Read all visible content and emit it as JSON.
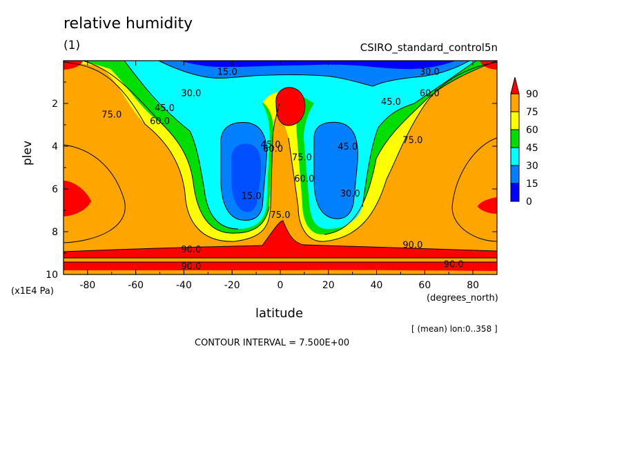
{
  "chart_data": {
    "type": "heatmap",
    "title": "relative humidity",
    "subtitle": "(1)",
    "source_label": "CSIRO_standard_control5n",
    "xlabel": "latitude",
    "xunits": "(degrees_north)",
    "ylabel": "plev",
    "yunits": "(x1E4 Pa)",
    "average_note": "[ (mean) lon:0..358 ]",
    "contour_interval_label": "CONTOUR INTERVAL = 7.500E+00",
    "xlim": [
      -90,
      90
    ],
    "ylim": [
      10,
      0
    ],
    "y_reversed": true,
    "x_ticks": [
      -80,
      -60,
      -40,
      -20,
      0,
      20,
      40,
      60,
      80
    ],
    "y_ticks": [
      2,
      4,
      6,
      8,
      10
    ],
    "legend": {
      "placement": "right",
      "levels": [
        "90",
        "75",
        "60",
        "45",
        "30",
        "15",
        "0"
      ],
      "colors": [
        "#ff0000",
        "#ffa500",
        "#ffff00",
        "#00dd00",
        "#00ffff",
        "#0080ff",
        "#0000ff"
      ]
    },
    "contour_labels": [
      {
        "text": "15.0",
        "lat": -22,
        "plev": 0.5
      },
      {
        "text": "30.0",
        "lat": 62,
        "plev": 0.5
      },
      {
        "text": "30.0",
        "lat": -37,
        "plev": 1.5
      },
      {
        "text": "45.0",
        "lat": -48,
        "plev": 2.2
      },
      {
        "text": "60.0",
        "lat": -50,
        "plev": 2.8
      },
      {
        "text": "75.0",
        "lat": -70,
        "plev": 2.5
      },
      {
        "text": "45.0",
        "lat": 46,
        "plev": 1.9
      },
      {
        "text": "60.0",
        "lat": 62,
        "plev": 1.5
      },
      {
        "text": "75.0",
        "lat": 55,
        "plev": 3.7
      },
      {
        "text": "45.0",
        "lat": 28,
        "plev": 4.0
      },
      {
        "text": "30.0",
        "lat": 29,
        "plev": 6.2
      },
      {
        "text": "15.0",
        "lat": -12,
        "plev": 6.3
      },
      {
        "text": "75.0",
        "lat": 9,
        "plev": 4.5
      },
      {
        "text": "60.0",
        "lat": 10,
        "plev": 5.5
      },
      {
        "text": "60.0",
        "lat": -3,
        "plev": 4.1
      },
      {
        "text": "45.0",
        "lat": -4,
        "plev": 3.9
      },
      {
        "text": "75.0",
        "lat": 0,
        "plev": 7.2
      },
      {
        "text": "90.0",
        "lat": -37,
        "plev": 8.8
      },
      {
        "text": "90.0",
        "lat": -37,
        "plev": 9.6
      },
      {
        "text": "90.0",
        "lat": 55,
        "plev": 8.6
      },
      {
        "text": "90.0",
        "lat": 72,
        "plev": 9.5
      }
    ]
  }
}
